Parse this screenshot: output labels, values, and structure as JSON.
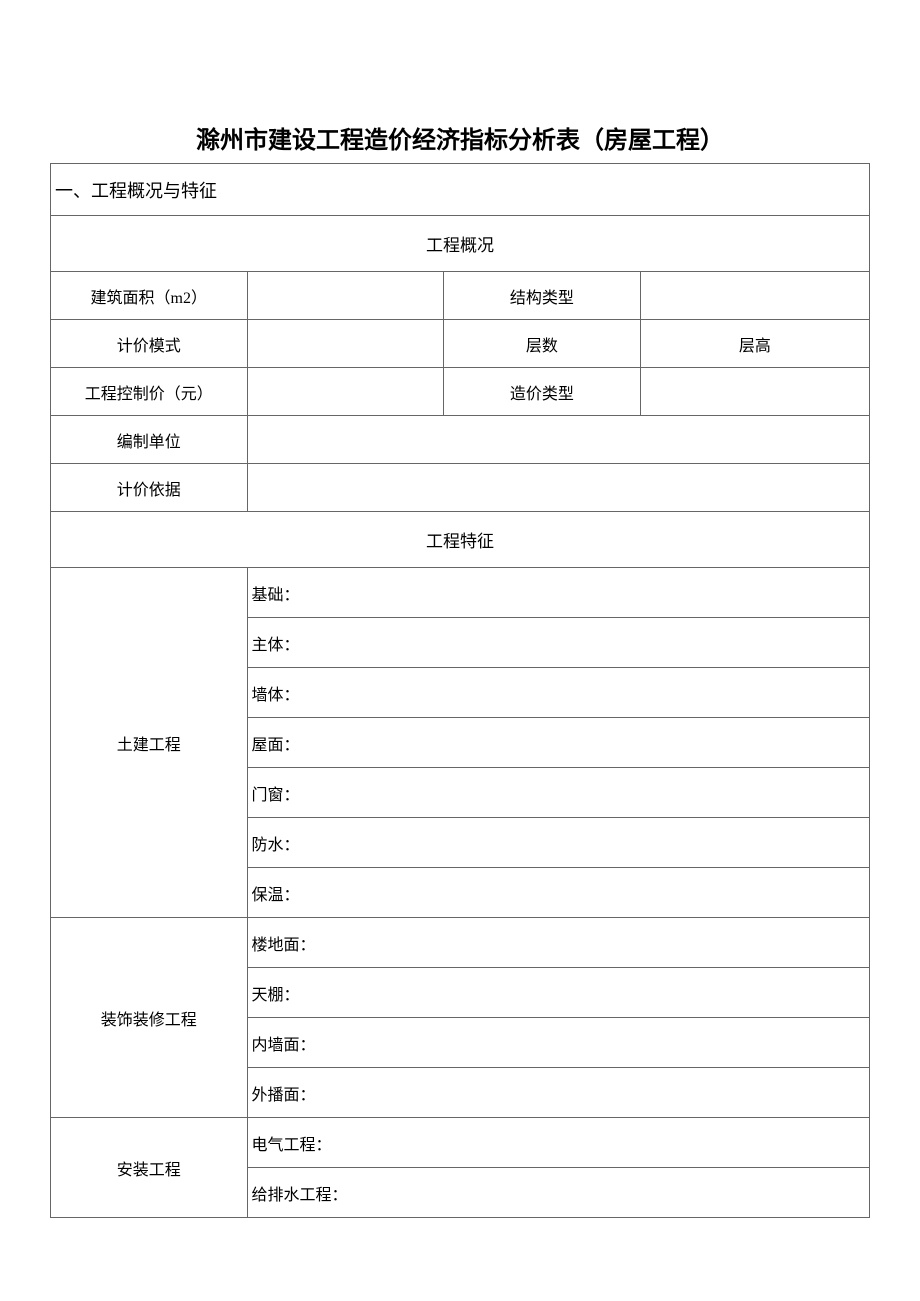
{
  "title": "滁州市建设工程造价经济指标分析表（房屋工程）",
  "section1": {
    "header": "一、工程概况与特征",
    "overview_header": "工程概况",
    "rows": {
      "building_area_label": "建筑面积（m2）",
      "building_area_value": "",
      "structure_type_label": "结构类型",
      "structure_type_value": "",
      "pricing_mode_label": "计价模式",
      "pricing_mode_value": "",
      "floors_label": "层数",
      "floor_height_label": "层高",
      "control_price_label": "工程控制价（元）",
      "control_price_value": "",
      "cost_type_label": "造价类型",
      "cost_type_value": "",
      "compile_unit_label": "编制单位",
      "compile_unit_value": "",
      "pricing_basis_label": "计价依据",
      "pricing_basis_value": ""
    },
    "features_header": "工程特征",
    "civil": {
      "label": "土建工程",
      "foundation": "基础：",
      "main_body": "主体：",
      "wall": "墙体：",
      "roof": "屋面：",
      "door_window": "门窗：",
      "waterproof": "防水：",
      "insulation": "保温："
    },
    "decoration": {
      "label": "装饰装修工程",
      "floor": "楼地面：",
      "ceiling": "天棚：",
      "inner_wall": "内墙面：",
      "outer_wall": "外播面："
    },
    "installation": {
      "label": "安装工程",
      "electrical": "电气工程：",
      "plumbing": "给排水工程："
    }
  },
  "styles": {
    "background_color": "#ffffff",
    "border_color": "#666666",
    "text_color": "#000000",
    "title_fontsize": 24,
    "cell_fontsize": 16,
    "header_fontsize": 18,
    "font_family": "SimSun"
  }
}
